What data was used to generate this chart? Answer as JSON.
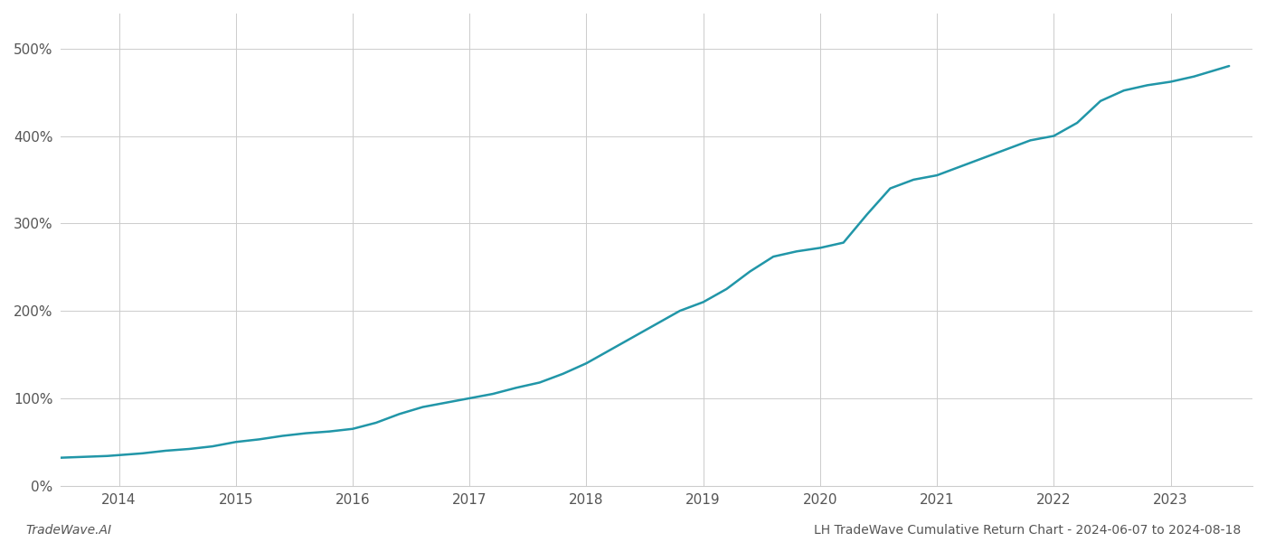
{
  "title": "",
  "xlabel": "",
  "ylabel": "",
  "footer_left": "TradeWave.AI",
  "footer_right": "LH TradeWave Cumulative Return Chart - 2024-06-07 to 2024-08-18",
  "line_color": "#2196a8",
  "background_color": "#ffffff",
  "grid_color": "#cccccc",
  "x_values": [
    2013.5,
    2013.7,
    2013.9,
    2014.0,
    2014.2,
    2014.4,
    2014.6,
    2014.8,
    2015.0,
    2015.2,
    2015.4,
    2015.6,
    2015.8,
    2016.0,
    2016.2,
    2016.4,
    2016.6,
    2016.8,
    2017.0,
    2017.2,
    2017.4,
    2017.6,
    2017.8,
    2018.0,
    2018.2,
    2018.4,
    2018.6,
    2018.8,
    2019.0,
    2019.2,
    2019.4,
    2019.6,
    2019.8,
    2020.0,
    2020.2,
    2020.4,
    2020.6,
    2020.8,
    2021.0,
    2021.2,
    2021.4,
    2021.6,
    2021.8,
    2022.0,
    2022.2,
    2022.4,
    2022.6,
    2022.8,
    2023.0,
    2023.2,
    2023.4,
    2023.5
  ],
  "y_values": [
    32,
    33,
    34,
    35,
    37,
    40,
    42,
    45,
    50,
    53,
    57,
    60,
    62,
    65,
    72,
    82,
    90,
    95,
    100,
    105,
    112,
    118,
    128,
    140,
    155,
    170,
    185,
    200,
    210,
    225,
    245,
    262,
    268,
    272,
    278,
    310,
    340,
    350,
    355,
    365,
    375,
    385,
    395,
    400,
    415,
    440,
    452,
    458,
    462,
    468,
    476,
    480
  ],
  "xlim": [
    2013.5,
    2023.7
  ],
  "ylim": [
    0,
    540
  ],
  "yticks": [
    0,
    100,
    200,
    300,
    400,
    500
  ],
  "xticks": [
    2014,
    2015,
    2016,
    2017,
    2018,
    2019,
    2020,
    2021,
    2022,
    2023
  ],
  "xtick_labels": [
    "2014",
    "2015",
    "2016",
    "2017",
    "2018",
    "2019",
    "2020",
    "2021",
    "2022",
    "2023"
  ],
  "ytick_labels": [
    "0%",
    "100%",
    "200%",
    "300%",
    "400%",
    "500%"
  ],
  "line_width": 1.8,
  "figsize": [
    14,
    6
  ],
  "dpi": 100,
  "spine_color": "#cccccc",
  "tick_color": "#888888",
  "label_fontsize": 11,
  "footer_fontsize": 10
}
